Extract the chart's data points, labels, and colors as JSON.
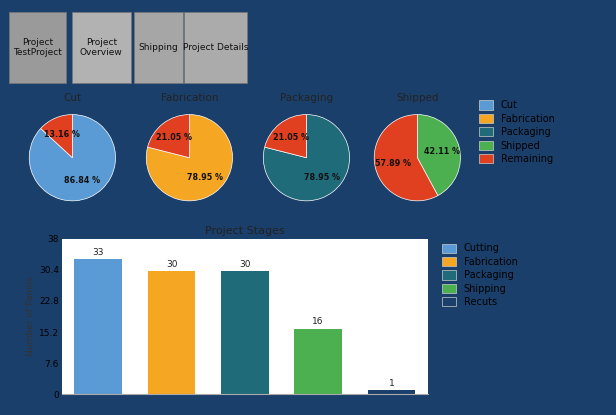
{
  "bg_color": "#1b3f6b",
  "content_bg": "#ffffff",
  "tab_labels": [
    "Project\nTestProject",
    "Project\nOverview",
    "Shipping",
    "Project Details"
  ],
  "tab_colors": [
    "#9a9a9a",
    "#b2b2b2",
    "#a6a6a6",
    "#ababab"
  ],
  "pie_charts": [
    {
      "title": "Cut",
      "slices": [
        86.84,
        13.16
      ],
      "colors": [
        "#5b9bd5",
        "#e04020"
      ],
      "labels": [
        "86.84 %",
        "13.16 %"
      ]
    },
    {
      "title": "Fabrication",
      "slices": [
        78.95,
        21.05
      ],
      "colors": [
        "#f5a623",
        "#e04020"
      ],
      "labels": [
        "78.95 %",
        "21.05 %"
      ]
    },
    {
      "title": "Packaging",
      "slices": [
        78.95,
        21.05
      ],
      "colors": [
        "#1f6b7a",
        "#e04020"
      ],
      "labels": [
        "78.95 %",
        "21.05 %"
      ]
    },
    {
      "title": "Shipped",
      "slices": [
        42.11,
        57.89
      ],
      "colors": [
        "#4caf50",
        "#e04020"
      ],
      "labels": [
        "42.11 %",
        "57.89 %"
      ]
    }
  ],
  "legend_labels": [
    "Cut",
    "Fabrication",
    "Packaging",
    "Shipped",
    "Remaining"
  ],
  "legend_colors": [
    "#5b9bd5",
    "#f5a623",
    "#1f6b7a",
    "#4caf50",
    "#e04020"
  ],
  "bar_title": "Project Stages",
  "bar_categories": [
    "Cutting",
    "Fabrication",
    "Packaging",
    "Shipping",
    "Recuts"
  ],
  "bar_values": [
    33,
    30,
    30,
    16,
    1
  ],
  "bar_colors": [
    "#5b9bd5",
    "#f5a623",
    "#1f6b7a",
    "#4caf50",
    "#1b3f6b"
  ],
  "bar_ylabel": "Number of Panels",
  "bar_ylim": [
    0,
    38
  ],
  "bar_yticks": [
    0,
    7.6,
    15.2,
    22.8,
    30.4,
    38
  ]
}
